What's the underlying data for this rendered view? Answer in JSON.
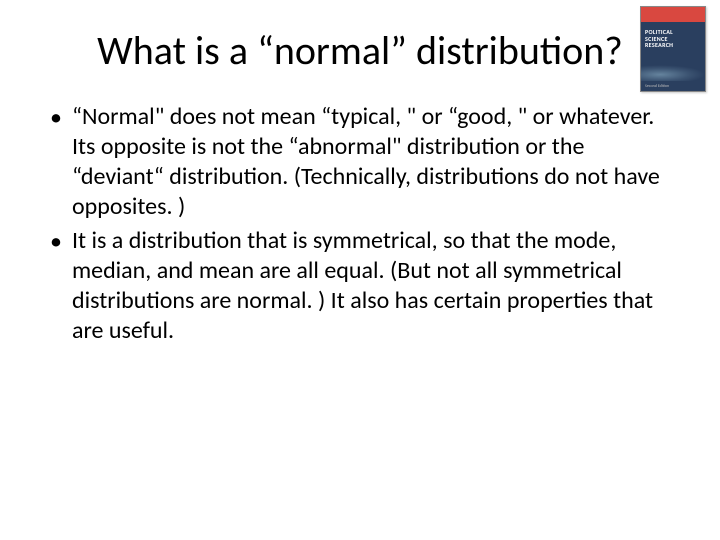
{
  "slide": {
    "title": "What is a “normal” distribution?",
    "bullets": [
      "“Normal\" does not mean “typical, \" or “good, \" or whatever. Its opposite is not the “abnormal\" distribution or the “deviant“ distribution. (Technically, distributions do not have opposites. )",
      "It is a distribution that is symmetrical, so that the mode, median, and mean are all equal. (But not all symmetrical distributions are normal. ) It also has certain properties that are useful."
    ]
  },
  "book": {
    "title_line1": "POLITICAL",
    "title_line2": "SCIENCE",
    "title_line3": "RESEARCH",
    "edition": "Second Edition"
  },
  "colors": {
    "background": "#ffffff",
    "text": "#000000",
    "book_red": "#d94840",
    "book_navy": "#2a3f5f"
  },
  "typography": {
    "title_fontsize": 40,
    "body_fontsize": 24,
    "font_family": "Calibri"
  }
}
